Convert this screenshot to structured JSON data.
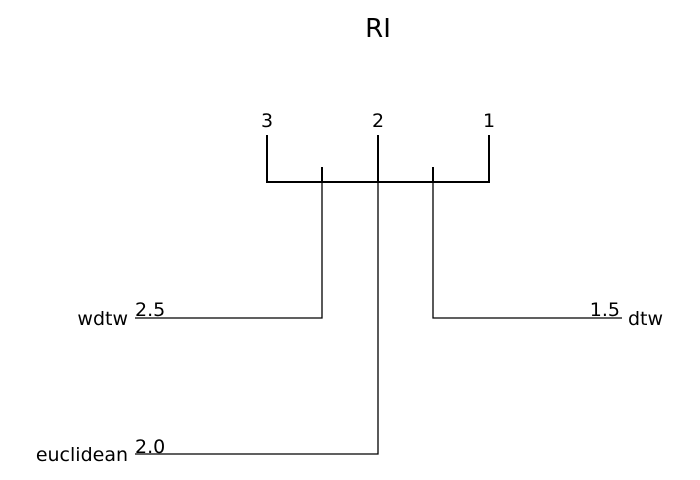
{
  "title": "RI",
  "axis": {
    "ticks": [
      "3",
      "2",
      "1"
    ]
  },
  "methods": [
    {
      "name": "wdtw",
      "score_label": "2.5",
      "rank": 2.5,
      "side": "left"
    },
    {
      "name": "dtw",
      "score_label": "1.5",
      "rank": 1.5,
      "side": "right"
    },
    {
      "name": "euclidean",
      "score_label": "2.0",
      "rank": 2.0,
      "side": "left"
    }
  ],
  "colors": {
    "line": "#000000",
    "text": "#000000",
    "background": "#ffffff"
  }
}
